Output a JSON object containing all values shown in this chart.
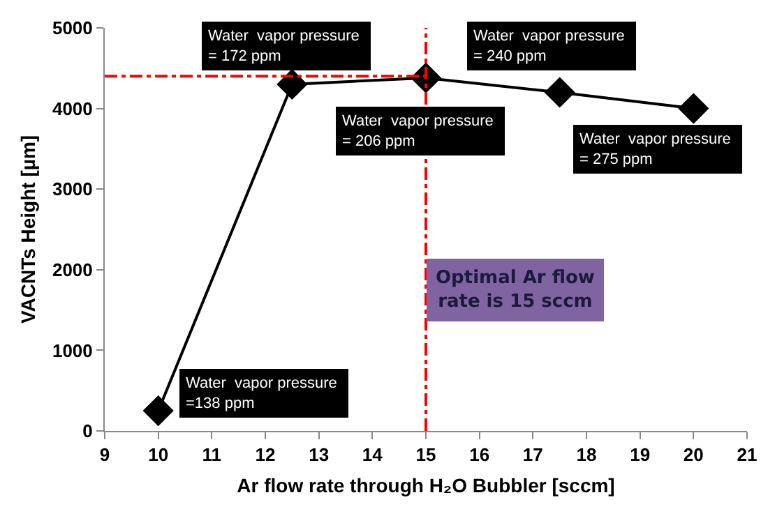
{
  "chart_data": {
    "type": "line",
    "xlabel": "Ar flow rate through H₂O Bubbler [sccm]",
    "ylabel": "VACNTs Height [µm]",
    "x": [
      10,
      12.5,
      15,
      17.5,
      20
    ],
    "series": [
      {
        "color": "#000000",
        "values": [
          250,
          4300,
          4380,
          4200,
          4000
        ]
      }
    ],
    "xlim": [
      9,
      21
    ],
    "xticks": [
      9,
      10,
      11,
      12,
      13,
      14,
      15,
      16,
      17,
      18,
      19,
      20,
      21
    ],
    "ylim": [
      0,
      5000
    ],
    "yticks": [
      0,
      1000,
      2000,
      3000,
      4000,
      5000
    ],
    "marker": "diamond",
    "line_style": "solid",
    "ref_lines": [
      {
        "axis": "x",
        "value": 15,
        "label": "Optimal Ar flow rate is 15 sccm",
        "color": "#ff0000",
        "line_style": "dashdot"
      },
      {
        "axis": "y",
        "value": 4400,
        "color": "#ff0000",
        "line_style": "dashdot"
      }
    ],
    "annotations": [
      {
        "text": "Water  vapor pressure\n=138 ppm",
        "x": 10,
        "y": 250
      },
      {
        "text": "Water  vapor pressure\n= 172 ppm",
        "x": 12.5,
        "y": 4300
      },
      {
        "text": "Water  vapor pressure\n= 206 ppm",
        "x": 15,
        "y": 4380
      },
      {
        "text": "Water  vapor pressure\n= 240 ppm",
        "x": 17.5,
        "y": 4200
      },
      {
        "text": "Water  vapor pressure\n= 275 ppm",
        "x": 20,
        "y": 4000
      }
    ]
  }
}
